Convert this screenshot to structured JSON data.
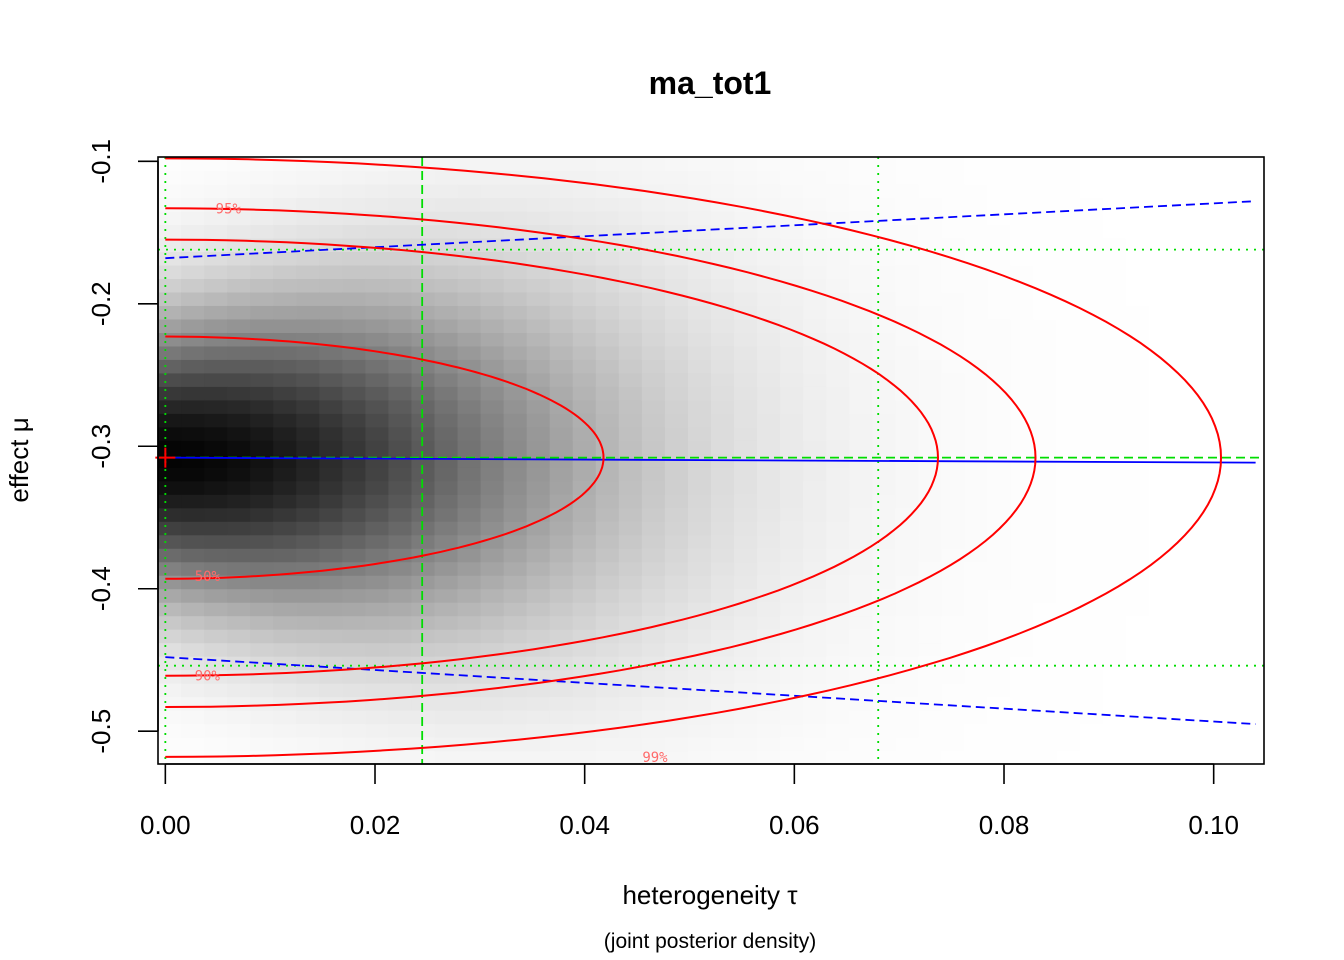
{
  "chart_data": {
    "type": "heatmap",
    "title": "ma_tot1",
    "xlabel": "heterogeneity τ",
    "sublabel": "(joint posterior density)",
    "ylabel": "effect μ",
    "xlim": [
      -0.0007,
      0.1048
    ],
    "ylim": [
      -0.523,
      -0.097
    ],
    "x_ticks": [
      {
        "value": 0.0,
        "label": "0.00"
      },
      {
        "value": 0.02,
        "label": "0.02"
      },
      {
        "value": 0.04,
        "label": "0.04"
      },
      {
        "value": 0.06,
        "label": "0.06"
      },
      {
        "value": 0.08,
        "label": "0.08"
      },
      {
        "value": 0.1,
        "label": "0.10"
      }
    ],
    "y_ticks": [
      {
        "value": -0.1,
        "label": "-0.1"
      },
      {
        "value": -0.2,
        "label": "-0.2"
      },
      {
        "value": -0.3,
        "label": "-0.3"
      },
      {
        "value": -0.4,
        "label": "-0.4"
      },
      {
        "value": -0.5,
        "label": "-0.5"
      }
    ],
    "density": {
      "mode_mu": -0.308,
      "sigma_mu": 0.066,
      "sigma_mu_slope": 1.35,
      "tau_scale": 0.038,
      "grid_x_cells": 48,
      "grid_y_cells": 45,
      "x_range": [
        -0.0007,
        0.1048
      ],
      "y_range": [
        -0.523,
        -0.097
      ]
    },
    "contours": [
      {
        "label": "50%",
        "mu_center": -0.308,
        "tau_max": 0.0418,
        "mu_half_width": 0.085,
        "label_tau": 0.0028,
        "label_mu": -0.391
      },
      {
        "label": "90%",
        "mu_center": -0.308,
        "tau_max": 0.0737,
        "mu_half_width": 0.153,
        "label_tau": 0.0028,
        "label_mu": -0.461
      },
      {
        "label": "95%",
        "mu_center": -0.308,
        "tau_max": 0.083,
        "mu_half_width": 0.175,
        "label_tau": 0.0048,
        "label_mu": -0.133
      },
      {
        "label": "99%",
        "mu_center": -0.308,
        "tau_max": 0.1007,
        "mu_half_width": 0.21,
        "label_tau": 0.0455,
        "label_mu": -0.518
      }
    ],
    "conditional_mean_line": {
      "tau": [
        0,
        0.104
      ],
      "mu": [
        -0.308,
        -0.3115
      ]
    },
    "conditional_interval_upper": {
      "tau": [
        0,
        0.104
      ],
      "mu": [
        -0.168,
        -0.128
      ]
    },
    "conditional_interval_lower": {
      "tau": [
        0,
        0.104
      ],
      "mu": [
        -0.448,
        -0.495
      ]
    },
    "tau_median": 0.0245,
    "tau_interval": [
      0.0,
      0.068
    ],
    "mu_median": -0.308,
    "mu_interval": [
      -0.454,
      -0.162
    ],
    "joint_mode": {
      "tau": 0.0,
      "mu": -0.308
    },
    "colors": {
      "contour": "#ff0000",
      "contour_label": "#ff6b6b",
      "conditional": "#0000ff",
      "marginal": "#00dd00",
      "mode_marker": "#ff0000"
    }
  }
}
